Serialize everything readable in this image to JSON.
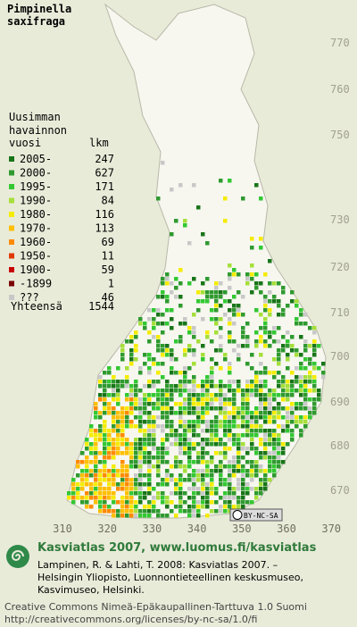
{
  "title": [
    "Pimpinella",
    "saxifraga"
  ],
  "legend": {
    "header": [
      "Uusimman",
      "havainnon",
      "vuosi"
    ],
    "count_header": "lkm",
    "rows": [
      {
        "label": "2005-",
        "count": 247,
        "color": "#197519"
      },
      {
        "label": "2000-",
        "count": 627,
        "color": "#2f9a2f"
      },
      {
        "label": "1995-",
        "count": 171,
        "color": "#33c833"
      },
      {
        "label": "1990-",
        "count": 84,
        "color": "#a6df3a"
      },
      {
        "label": "1980-",
        "count": 116,
        "color": "#f5ec00"
      },
      {
        "label": "1970-",
        "count": 113,
        "color": "#ffbf00"
      },
      {
        "label": "1960-",
        "count": 69,
        "color": "#ff8a00"
      },
      {
        "label": "1950-",
        "count": 11,
        "color": "#e03a00"
      },
      {
        "label": "1900-",
        "count": 59,
        "color": "#c80000"
      },
      {
        "label": "-1899",
        "count": 1,
        "color": "#7a0000"
      },
      {
        "label": "???",
        "count": 46,
        "color": "#c8c8c8"
      }
    ],
    "total_label": "Yhteensä",
    "total": 1544
  },
  "y_labels": [
    "770",
    "760",
    "750",
    "730",
    "720",
    "710",
    "700",
    "690",
    "680",
    "670"
  ],
  "x_labels": [
    "310",
    "320",
    "330",
    "340",
    "350",
    "360",
    "370"
  ],
  "badge": "BY-NC-SA",
  "footer": {
    "heading": "Kasviatlas 2007, www.luomus.fi/kasviatlas",
    "citation": [
      "Lampinen, R. & Lahti, T. 2008: Kasviatlas 2007. –",
      "Helsingin Yliopisto, Luonnontieteellinen keskusmuseo,",
      "Kasvimuseo, Helsinki."
    ],
    "license": [
      "Creative Commons Nimeä-Epäkaupallinen-Tarttuva 1.0 Suomi",
      "http://creativecommons.org/licenses/by-nc-sa/1.0/fi"
    ]
  }
}
